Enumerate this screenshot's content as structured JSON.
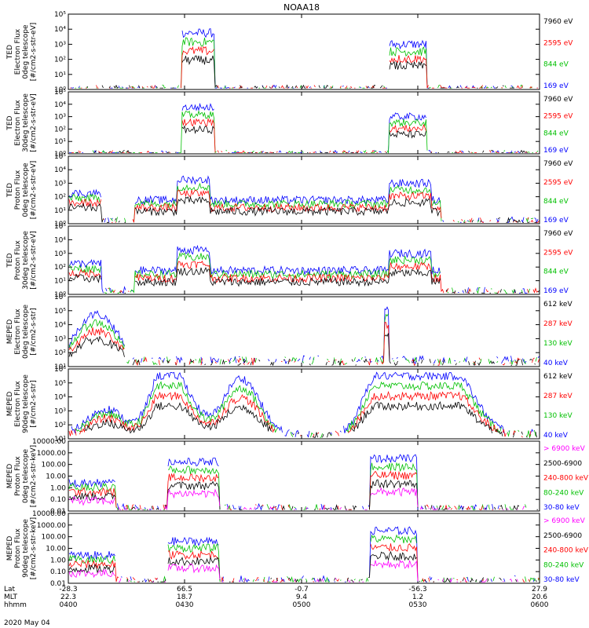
{
  "title": "NOAA18",
  "footer_date": "2020 May 04",
  "x_axis": {
    "rows": [
      {
        "label": "Lat",
        "values": [
          "-28.3",
          "66.5",
          "-0.7",
          "-56.3",
          "27.9"
        ]
      },
      {
        "label": "MLT",
        "values": [
          "22.3",
          "18.7",
          "9.4",
          "1.2",
          "20.6"
        ]
      },
      {
        "label": "hhmm",
        "values": [
          "0400",
          "0430",
          "0500",
          "0530",
          "0600"
        ]
      }
    ],
    "tick_times": [
      "0400",
      "0430",
      "0500",
      "0530",
      "0600"
    ]
  },
  "chart_data": [
    {
      "type": "line",
      "ylabel": [
        "TED",
        "Electron Flux",
        "0deg telescope",
        "[#/cm2-s-str-eV]"
      ],
      "y_scale": "log",
      "yticks": [
        "10⁰",
        "10¹",
        "10²",
        "10³",
        "10⁴",
        "10⁵"
      ],
      "legend": [
        {
          "name": "7960 eV",
          "color": "#000000"
        },
        {
          "name": "2595 eV",
          "color": "#ff0000"
        },
        {
          "name": "844 eV",
          "color": "#00c000"
        },
        {
          "name": "169 eV",
          "color": "#0000ff"
        }
      ]
    },
    {
      "type": "line",
      "ylabel": [
        "TED",
        "Electron Flux",
        "30deg telescope",
        "[#/cm2-s-str-eV]"
      ],
      "y_scale": "log",
      "yticks": [
        "10⁰",
        "10¹",
        "10²",
        "10³",
        "10⁴",
        "10⁵"
      ],
      "legend": [
        {
          "name": "7960 eV",
          "color": "#000000"
        },
        {
          "name": "2595 eV",
          "color": "#ff0000"
        },
        {
          "name": "844 eV",
          "color": "#00c000"
        },
        {
          "name": "169 eV",
          "color": "#0000ff"
        }
      ]
    },
    {
      "type": "line",
      "ylabel": [
        "TED",
        "Proton Flux",
        "0deg telescope",
        "[#/cm2-s-str-eV]"
      ],
      "y_scale": "log",
      "yticks": [
        "10⁰",
        "10¹",
        "10²",
        "10³",
        "10⁴",
        "10⁵"
      ],
      "legend": [
        {
          "name": "7960 eV",
          "color": "#000000"
        },
        {
          "name": "2595 eV",
          "color": "#ff0000"
        },
        {
          "name": "844 eV",
          "color": "#00c000"
        },
        {
          "name": "169 eV",
          "color": "#0000ff"
        }
      ]
    },
    {
      "type": "line",
      "ylabel": [
        "TED",
        "Proton Flux",
        "30deg telescope",
        "[#/cm2-s-str-eV]"
      ],
      "y_scale": "log",
      "yticks": [
        "10⁰",
        "10¹",
        "10²",
        "10³",
        "10⁴",
        "10⁵"
      ],
      "legend": [
        {
          "name": "7960 eV",
          "color": "#000000"
        },
        {
          "name": "2595 eV",
          "color": "#ff0000"
        },
        {
          "name": "844 eV",
          "color": "#00c000"
        },
        {
          "name": "169 eV",
          "color": "#0000ff"
        }
      ]
    },
    {
      "type": "line",
      "ylabel": [
        "MEPED",
        "Electron Flux",
        "0deg telescope",
        "[#/cm2-s-str]"
      ],
      "y_scale": "log",
      "yticks": [
        "10¹",
        "10²",
        "10³",
        "10⁴",
        "10⁵",
        "10⁶"
      ],
      "legend": [
        {
          "name": "612 keV",
          "color": "#000000"
        },
        {
          "name": "287 keV",
          "color": "#ff0000"
        },
        {
          "name": "130 keV",
          "color": "#00c000"
        },
        {
          "name": "40 keV",
          "color": "#0000ff"
        }
      ]
    },
    {
      "type": "line",
      "ylabel": [
        "MEPED",
        "Electron Flux",
        "90deg telescope",
        "[#/cm2-s-str]"
      ],
      "y_scale": "log",
      "yticks": [
        "10¹",
        "10²",
        "10³",
        "10⁴",
        "10⁵",
        "10⁶"
      ],
      "legend": [
        {
          "name": "612 keV",
          "color": "#000000"
        },
        {
          "name": "287 keV",
          "color": "#ff0000"
        },
        {
          "name": "130 keV",
          "color": "#00c000"
        },
        {
          "name": "40 keV",
          "color": "#0000ff"
        }
      ]
    },
    {
      "type": "line",
      "ylabel": [
        "MEPED",
        "Proton Flux",
        "0deg telescope",
        "[#/cm2-s-str-keV]"
      ],
      "y_scale": "log",
      "yticks": [
        "0.01",
        "0.10",
        "1.00",
        "10.00",
        "100.00",
        "1000.00",
        "10000.00"
      ],
      "legend": [
        {
          "name": "> 6900 keV",
          "color": "#ff00ff"
        },
        {
          "name": "2500-6900",
          "color": "#000000"
        },
        {
          "name": "240-800 keV",
          "color": "#ff0000"
        },
        {
          "name": "80-240 keV",
          "color": "#00c000"
        },
        {
          "name": "30-80 keV",
          "color": "#0000ff"
        }
      ]
    },
    {
      "type": "line",
      "ylabel": [
        "MEPED",
        "Proton Flux",
        "90deg telescope",
        "[#/cm2-s-str-keV]"
      ],
      "y_scale": "log",
      "yticks": [
        "0.01",
        "0.10",
        "1.00",
        "10.00",
        "100.00",
        "1000.00",
        "10000.00"
      ],
      "legend": [
        {
          "name": "> 6900 keV",
          "color": "#ff00ff"
        },
        {
          "name": "2500-6900",
          "color": "#000000"
        },
        {
          "name": "240-800 keV",
          "color": "#ff0000"
        },
        {
          "name": "80-240 keV",
          "color": "#00c000"
        },
        {
          "name": "30-80 keV",
          "color": "#0000ff"
        }
      ]
    }
  ]
}
